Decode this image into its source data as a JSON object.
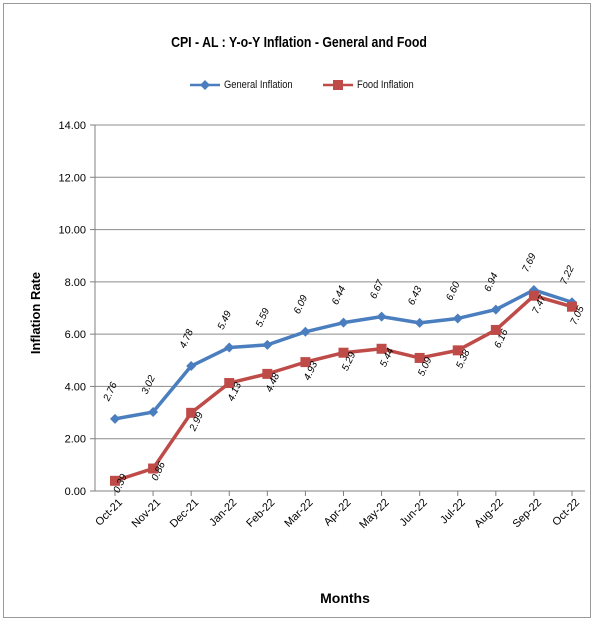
{
  "chart_data": {
    "type": "line",
    "title": "CPI - AL : Y-o-Y Inflation - General and Food",
    "xlabel": "Months",
    "ylabel": "Inflation Rate",
    "ylim": [
      0,
      14
    ],
    "y_ticks": [
      "0.00",
      "2.00",
      "4.00",
      "6.00",
      "8.00",
      "10.00",
      "12.00",
      "14.00"
    ],
    "grid": true,
    "legend_position": "top",
    "categories": [
      "Oct-21",
      "Nov-21",
      "Dec-21",
      "Jan-22",
      "Feb-22",
      "Mar-22",
      "Apr-22",
      "May-22",
      "Jun-22",
      "Jul-22",
      "Aug-22",
      "Sep-22",
      "Oct-22"
    ],
    "series": [
      {
        "name": "General Inflation",
        "color": "#4a7ebf",
        "marker": "diamond",
        "values": [
          2.76,
          3.02,
          4.78,
          5.49,
          5.59,
          6.09,
          6.44,
          6.67,
          6.43,
          6.6,
          6.94,
          7.69,
          7.22
        ],
        "labels": [
          "2.76",
          "3.02",
          "4.78",
          "5.49",
          "5.59",
          "6.09",
          "6.44",
          "6.67",
          "6.43",
          "6.60",
          "6.94",
          "7.69",
          "7.22"
        ]
      },
      {
        "name": "Food Inflation",
        "color": "#be4b48",
        "marker": "square",
        "values": [
          0.39,
          0.86,
          2.99,
          4.13,
          4.48,
          4.93,
          5.29,
          5.44,
          5.09,
          5.38,
          6.16,
          7.47,
          7.05
        ],
        "labels": [
          "0.39",
          "0.86",
          "2.99",
          "4.13",
          "4.48",
          "4.93",
          "5.29",
          "5.44",
          "5.09",
          "5.38",
          "6.16",
          "7.47",
          "7.05"
        ]
      }
    ]
  }
}
